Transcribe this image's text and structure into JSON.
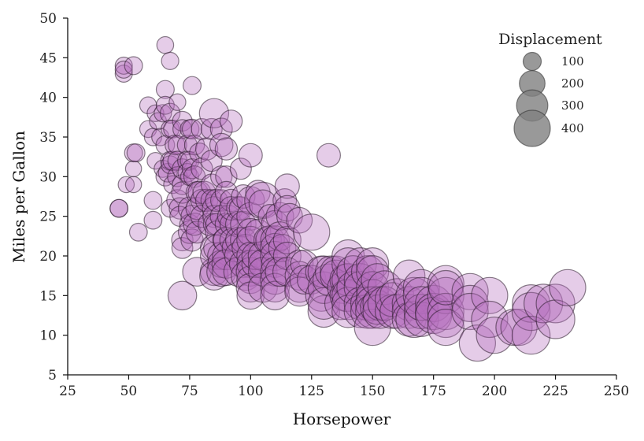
{
  "chart_data": {
    "type": "scatter",
    "title": "",
    "xlabel": "Horsepower",
    "ylabel": "Miles per Gallon",
    "xlim": [
      25,
      250
    ],
    "ylim": [
      5,
      50
    ],
    "xticks": [
      25,
      50,
      75,
      100,
      125,
      150,
      175,
      200,
      225,
      250
    ],
    "yticks": [
      5,
      10,
      15,
      20,
      25,
      30,
      35,
      40,
      45,
      50
    ],
    "grid": false,
    "marker_color": "#b56cbe",
    "marker_alpha": 0.35,
    "edge_color": "#2a1a2a",
    "size_encoding": "Displacement",
    "legend": {
      "title": "Displacement",
      "placement": "top-right",
      "color": "#808080",
      "entries": [
        {
          "label": "100",
          "value": 100
        },
        {
          "label": "200",
          "value": 200
        },
        {
          "label": "300",
          "value": 300
        },
        {
          "label": "400",
          "value": 400
        }
      ]
    },
    "points": [
      {
        "x": 46,
        "y": 26,
        "d": 97
      },
      {
        "x": 46,
        "y": 26,
        "d": 97
      },
      {
        "x": 48,
        "y": 43,
        "d": 90
      },
      {
        "x": 48,
        "y": 44,
        "d": 90
      },
      {
        "x": 48,
        "y": 43.5,
        "d": 90
      },
      {
        "x": 49,
        "y": 29,
        "d": 79
      },
      {
        "x": 52,
        "y": 44,
        "d": 98
      },
      {
        "x": 52,
        "y": 31,
        "d": 79
      },
      {
        "x": 52,
        "y": 29,
        "d": 79
      },
      {
        "x": 52,
        "y": 33,
        "d": 98
      },
      {
        "x": 53,
        "y": 33,
        "d": 98
      },
      {
        "x": 54,
        "y": 23,
        "d": 97
      },
      {
        "x": 58,
        "y": 39,
        "d": 86
      },
      {
        "x": 58,
        "y": 36,
        "d": 86
      },
      {
        "x": 60,
        "y": 35,
        "d": 91
      },
      {
        "x": 60,
        "y": 27,
        "d": 97
      },
      {
        "x": 60,
        "y": 24.5,
        "d": 97
      },
      {
        "x": 61,
        "y": 32,
        "d": 85
      },
      {
        "x": 61,
        "y": 38,
        "d": 85
      },
      {
        "x": 62,
        "y": 37,
        "d": 89
      },
      {
        "x": 63,
        "y": 35,
        "d": 91
      },
      {
        "x": 64,
        "y": 38,
        "d": 91
      },
      {
        "x": 64,
        "y": 31,
        "d": 91
      },
      {
        "x": 65,
        "y": 46.6,
        "d": 86
      },
      {
        "x": 65,
        "y": 34,
        "d": 105
      },
      {
        "x": 65,
        "y": 30,
        "d": 105
      },
      {
        "x": 65,
        "y": 41,
        "d": 98
      },
      {
        "x": 65,
        "y": 39,
        "d": 98
      },
      {
        "x": 66,
        "y": 30.5,
        "d": 105
      },
      {
        "x": 67,
        "y": 32,
        "d": 108
      },
      {
        "x": 67,
        "y": 44.6,
        "d": 91
      },
      {
        "x": 67,
        "y": 38,
        "d": 120
      },
      {
        "x": 67,
        "y": 36,
        "d": 98
      },
      {
        "x": 67,
        "y": 31.5,
        "d": 98
      },
      {
        "x": 67,
        "y": 26,
        "d": 97
      },
      {
        "x": 68,
        "y": 36,
        "d": 98
      },
      {
        "x": 68,
        "y": 32,
        "d": 112
      },
      {
        "x": 68,
        "y": 29,
        "d": 97
      },
      {
        "x": 69,
        "y": 34,
        "d": 121
      },
      {
        "x": 70,
        "y": 39.4,
        "d": 85
      },
      {
        "x": 70,
        "y": 34,
        "d": 105
      },
      {
        "x": 70,
        "y": 32,
        "d": 112
      },
      {
        "x": 70,
        "y": 30,
        "d": 120
      },
      {
        "x": 70,
        "y": 27,
        "d": 140
      },
      {
        "x": 71,
        "y": 26,
        "d": 140
      },
      {
        "x": 71,
        "y": 25,
        "d": 122
      },
      {
        "x": 72,
        "y": 37,
        "d": 119
      },
      {
        "x": 72,
        "y": 36,
        "d": 108
      },
      {
        "x": 72,
        "y": 31,
        "d": 120
      },
      {
        "x": 72,
        "y": 29,
        "d": 122
      },
      {
        "x": 72,
        "y": 28,
        "d": 140
      },
      {
        "x": 72,
        "y": 22,
        "d": 140
      },
      {
        "x": 72,
        "y": 21,
        "d": 134
      },
      {
        "x": 72,
        "y": 15,
        "d": 250
      },
      {
        "x": 74,
        "y": 34,
        "d": 119
      },
      {
        "x": 74,
        "y": 32,
        "d": 113
      },
      {
        "x": 74,
        "y": 30.5,
        "d": 105
      },
      {
        "x": 75,
        "y": 36,
        "d": 107
      },
      {
        "x": 75,
        "y": 32,
        "d": 105
      },
      {
        "x": 75,
        "y": 30,
        "d": 98
      },
      {
        "x": 75,
        "y": 26,
        "d": 156
      },
      {
        "x": 75,
        "y": 24,
        "d": 121
      },
      {
        "x": 75,
        "y": 23,
        "d": 156
      },
      {
        "x": 76,
        "y": 41.5,
        "d": 98
      },
      {
        "x": 76,
        "y": 36,
        "d": 119
      },
      {
        "x": 76,
        "y": 31,
        "d": 121
      },
      {
        "x": 76,
        "y": 25,
        "d": 151
      },
      {
        "x": 76,
        "y": 22,
        "d": 151
      },
      {
        "x": 77,
        "y": 34,
        "d": 121
      },
      {
        "x": 77,
        "y": 30,
        "d": 140
      },
      {
        "x": 77,
        "y": 24,
        "d": 151
      },
      {
        "x": 78,
        "y": 28,
        "d": 146
      },
      {
        "x": 78,
        "y": 26,
        "d": 151
      },
      {
        "x": 78,
        "y": 23,
        "d": 146
      },
      {
        "x": 78,
        "y": 18,
        "d": 250
      },
      {
        "x": 79,
        "y": 33,
        "d": 119
      },
      {
        "x": 79,
        "y": 28,
        "d": 156
      },
      {
        "x": 80,
        "y": 36,
        "d": 134
      },
      {
        "x": 80,
        "y": 31,
        "d": 140
      },
      {
        "x": 80,
        "y": 27,
        "d": 151
      },
      {
        "x": 80,
        "y": 25,
        "d": 151
      },
      {
        "x": 81,
        "y": 28,
        "d": 156
      },
      {
        "x": 82,
        "y": 27,
        "d": 151
      },
      {
        "x": 82,
        "y": 33.5,
        "d": 151
      },
      {
        "x": 83,
        "y": 24,
        "d": 151
      },
      {
        "x": 84,
        "y": 29,
        "d": 135
      },
      {
        "x": 84,
        "y": 32,
        "d": 135
      },
      {
        "x": 84,
        "y": 27,
        "d": 140
      },
      {
        "x": 84,
        "y": 36,
        "d": 135
      },
      {
        "x": 85,
        "y": 38,
        "d": 262
      },
      {
        "x": 85,
        "y": 26,
        "d": 168
      },
      {
        "x": 85,
        "y": 25,
        "d": 151
      },
      {
        "x": 85,
        "y": 24,
        "d": 140
      },
      {
        "x": 85,
        "y": 21,
        "d": 225
      },
      {
        "x": 85,
        "y": 18,
        "d": 232
      },
      {
        "x": 85,
        "y": 20,
        "d": 225
      },
      {
        "x": 85,
        "y": 17.5,
        "d": 250
      },
      {
        "x": 86,
        "y": 27,
        "d": 151
      },
      {
        "x": 86,
        "y": 24,
        "d": 140
      },
      {
        "x": 86,
        "y": 23,
        "d": 151
      },
      {
        "x": 86,
        "y": 21,
        "d": 200
      },
      {
        "x": 88,
        "y": 36,
        "d": 146
      },
      {
        "x": 88,
        "y": 34,
        "d": 163
      },
      {
        "x": 88,
        "y": 30,
        "d": 140
      },
      {
        "x": 88,
        "y": 27,
        "d": 140
      },
      {
        "x": 88,
        "y": 25,
        "d": 151
      },
      {
        "x": 88,
        "y": 20,
        "d": 232
      },
      {
        "x": 88,
        "y": 19,
        "d": 225
      },
      {
        "x": 88,
        "y": 18,
        "d": 258
      },
      {
        "x": 89,
        "y": 22,
        "d": 151
      },
      {
        "x": 90,
        "y": 33.5,
        "d": 151
      },
      {
        "x": 90,
        "y": 30,
        "d": 140
      },
      {
        "x": 90,
        "y": 28,
        "d": 151
      },
      {
        "x": 90,
        "y": 24,
        "d": 151
      },
      {
        "x": 90,
        "y": 22,
        "d": 198
      },
      {
        "x": 90,
        "y": 20,
        "d": 232
      },
      {
        "x": 90,
        "y": 19,
        "d": 250
      },
      {
        "x": 90,
        "y": 18,
        "d": 232
      },
      {
        "x": 91,
        "y": 25,
        "d": 151
      },
      {
        "x": 92,
        "y": 37,
        "d": 151
      },
      {
        "x": 92,
        "y": 27,
        "d": 151
      },
      {
        "x": 92,
        "y": 24,
        "d": 151
      },
      {
        "x": 92,
        "y": 22,
        "d": 156
      },
      {
        "x": 92,
        "y": 26,
        "d": 168
      },
      {
        "x": 94,
        "y": 21,
        "d": 232
      },
      {
        "x": 95,
        "y": 26,
        "d": 171
      },
      {
        "x": 95,
        "y": 24,
        "d": 200
      },
      {
        "x": 95,
        "y": 22,
        "d": 200
      },
      {
        "x": 95,
        "y": 20,
        "d": 232
      },
      {
        "x": 95,
        "y": 18,
        "d": 258
      },
      {
        "x": 96,
        "y": 31,
        "d": 135
      },
      {
        "x": 96,
        "y": 26,
        "d": 163
      },
      {
        "x": 97,
        "y": 27.5,
        "d": 168
      },
      {
        "x": 97,
        "y": 24,
        "d": 198
      },
      {
        "x": 97,
        "y": 22,
        "d": 200
      },
      {
        "x": 97,
        "y": 19,
        "d": 232
      },
      {
        "x": 98,
        "y": 21,
        "d": 225
      },
      {
        "x": 98,
        "y": 17.5,
        "d": 258
      },
      {
        "x": 100,
        "y": 32.7,
        "d": 168
      },
      {
        "x": 100,
        "y": 27,
        "d": 232
      },
      {
        "x": 100,
        "y": 25,
        "d": 232
      },
      {
        "x": 100,
        "y": 23,
        "d": 225
      },
      {
        "x": 100,
        "y": 22,
        "d": 232
      },
      {
        "x": 100,
        "y": 20,
        "d": 232
      },
      {
        "x": 100,
        "y": 19,
        "d": 225
      },
      {
        "x": 100,
        "y": 18,
        "d": 250
      },
      {
        "x": 100,
        "y": 17,
        "d": 232
      },
      {
        "x": 100,
        "y": 16,
        "d": 250
      },
      {
        "x": 100,
        "y": 15,
        "d": 225
      },
      {
        "x": 102,
        "y": 19,
        "d": 225
      },
      {
        "x": 102,
        "y": 20,
        "d": 225
      },
      {
        "x": 103,
        "y": 28,
        "d": 181
      },
      {
        "x": 103,
        "y": 23,
        "d": 200
      },
      {
        "x": 105,
        "y": 27,
        "d": 400
      },
      {
        "x": 105,
        "y": 26.6,
        "d": 232
      },
      {
        "x": 105,
        "y": 20,
        "d": 258
      },
      {
        "x": 105,
        "y": 19,
        "d": 250
      },
      {
        "x": 105,
        "y": 18,
        "d": 250
      },
      {
        "x": 105,
        "y": 16,
        "d": 258
      },
      {
        "x": 107,
        "y": 22,
        "d": 232
      },
      {
        "x": 108,
        "y": 25,
        "d": 173
      },
      {
        "x": 108,
        "y": 22,
        "d": 250
      },
      {
        "x": 110,
        "y": 24,
        "d": 225
      },
      {
        "x": 110,
        "y": 22,
        "d": 250
      },
      {
        "x": 110,
        "y": 21,
        "d": 258
      },
      {
        "x": 110,
        "y": 20,
        "d": 258
      },
      {
        "x": 110,
        "y": 19,
        "d": 225
      },
      {
        "x": 110,
        "y": 18,
        "d": 250
      },
      {
        "x": 110,
        "y": 17,
        "d": 258
      },
      {
        "x": 110,
        "y": 16,
        "d": 250
      },
      {
        "x": 110,
        "y": 15,
        "d": 250
      },
      {
        "x": 112,
        "y": 25,
        "d": 232
      },
      {
        "x": 112,
        "y": 22.5,
        "d": 250
      },
      {
        "x": 112,
        "y": 18,
        "d": 258
      },
      {
        "x": 113,
        "y": 21,
        "d": 225
      },
      {
        "x": 114,
        "y": 27,
        "d": 168
      },
      {
        "x": 115,
        "y": 28.8,
        "d": 181
      },
      {
        "x": 115,
        "y": 26,
        "d": 200
      },
      {
        "x": 115,
        "y": 22,
        "d": 231
      },
      {
        "x": 115,
        "y": 20,
        "d": 231
      },
      {
        "x": 115,
        "y": 18,
        "d": 250
      },
      {
        "x": 116,
        "y": 25,
        "d": 200
      },
      {
        "x": 120,
        "y": 24.5,
        "d": 200
      },
      {
        "x": 120,
        "y": 19,
        "d": 231
      },
      {
        "x": 120,
        "y": 17.5,
        "d": 250
      },
      {
        "x": 120,
        "y": 16,
        "d": 258
      },
      {
        "x": 120,
        "y": 15.5,
        "d": 258
      },
      {
        "x": 122,
        "y": 19,
        "d": 225
      },
      {
        "x": 122,
        "y": 17,
        "d": 250
      },
      {
        "x": 125,
        "y": 23,
        "d": 400
      },
      {
        "x": 125,
        "y": 17,
        "d": 250
      },
      {
        "x": 129,
        "y": 18,
        "d": 302
      },
      {
        "x": 129,
        "y": 15,
        "d": 302
      },
      {
        "x": 130,
        "y": 13,
        "d": 307
      },
      {
        "x": 130,
        "y": 18,
        "d": 305
      },
      {
        "x": 130,
        "y": 16,
        "d": 305
      },
      {
        "x": 130,
        "y": 14,
        "d": 305
      },
      {
        "x": 132,
        "y": 32.7,
        "d": 168
      },
      {
        "x": 132,
        "y": 17,
        "d": 302
      },
      {
        "x": 133,
        "y": 18,
        "d": 305
      },
      {
        "x": 135,
        "y": 18,
        "d": 302
      },
      {
        "x": 135,
        "y": 17.5,
        "d": 302
      },
      {
        "x": 137,
        "y": 14,
        "d": 318
      },
      {
        "x": 138,
        "y": 16,
        "d": 302
      },
      {
        "x": 139,
        "y": 17,
        "d": 302
      },
      {
        "x": 139,
        "y": 15,
        "d": 302
      },
      {
        "x": 140,
        "y": 20,
        "d": 318
      },
      {
        "x": 140,
        "y": 19,
        "d": 318
      },
      {
        "x": 140,
        "y": 17,
        "d": 318
      },
      {
        "x": 140,
        "y": 15,
        "d": 318
      },
      {
        "x": 140,
        "y": 14,
        "d": 318
      },
      {
        "x": 140,
        "y": 13,
        "d": 318
      },
      {
        "x": 142,
        "y": 18,
        "d": 318
      },
      {
        "x": 142,
        "y": 16,
        "d": 318
      },
      {
        "x": 145,
        "y": 19,
        "d": 318
      },
      {
        "x": 145,
        "y": 17,
        "d": 318
      },
      {
        "x": 145,
        "y": 16,
        "d": 318
      },
      {
        "x": 145,
        "y": 14,
        "d": 318
      },
      {
        "x": 145,
        "y": 13,
        "d": 318
      },
      {
        "x": 148,
        "y": 14,
        "d": 350
      },
      {
        "x": 148,
        "y": 13,
        "d": 350
      },
      {
        "x": 148,
        "y": 18,
        "d": 318
      },
      {
        "x": 150,
        "y": 19,
        "d": 318
      },
      {
        "x": 150,
        "y": 18,
        "d": 318
      },
      {
        "x": 150,
        "y": 16,
        "d": 318
      },
      {
        "x": 150,
        "y": 15,
        "d": 318
      },
      {
        "x": 150,
        "y": 14,
        "d": 350
      },
      {
        "x": 150,
        "y": 13,
        "d": 351
      },
      {
        "x": 150,
        "y": 11,
        "d": 400
      },
      {
        "x": 152,
        "y": 17,
        "d": 318
      },
      {
        "x": 152,
        "y": 13.5,
        "d": 350
      },
      {
        "x": 153,
        "y": 14,
        "d": 351
      },
      {
        "x": 153,
        "y": 13,
        "d": 350
      },
      {
        "x": 155,
        "y": 16,
        "d": 351
      },
      {
        "x": 155,
        "y": 14,
        "d": 350
      },
      {
        "x": 158,
        "y": 13,
        "d": 351
      },
      {
        "x": 158,
        "y": 14.5,
        "d": 351
      },
      {
        "x": 160,
        "y": 15,
        "d": 350
      },
      {
        "x": 160,
        "y": 13,
        "d": 351
      },
      {
        "x": 165,
        "y": 17.5,
        "d": 304
      },
      {
        "x": 165,
        "y": 14,
        "d": 350
      },
      {
        "x": 165,
        "y": 13,
        "d": 350
      },
      {
        "x": 165,
        "y": 12,
        "d": 351
      },
      {
        "x": 167,
        "y": 15,
        "d": 400
      },
      {
        "x": 167,
        "y": 12,
        "d": 400
      },
      {
        "x": 170,
        "y": 16,
        "d": 400
      },
      {
        "x": 170,
        "y": 15,
        "d": 400
      },
      {
        "x": 170,
        "y": 13,
        "d": 360
      },
      {
        "x": 170,
        "y": 12,
        "d": 360
      },
      {
        "x": 170,
        "y": 14,
        "d": 350
      },
      {
        "x": 175,
        "y": 14,
        "d": 400
      },
      {
        "x": 175,
        "y": 13,
        "d": 400
      },
      {
        "x": 175,
        "y": 12.5,
        "d": 400
      },
      {
        "x": 180,
        "y": 16.5,
        "d": 400
      },
      {
        "x": 180,
        "y": 15,
        "d": 400
      },
      {
        "x": 180,
        "y": 13,
        "d": 400
      },
      {
        "x": 180,
        "y": 12,
        "d": 400
      },
      {
        "x": 180,
        "y": 11,
        "d": 400
      },
      {
        "x": 180,
        "y": 16,
        "d": 360
      },
      {
        "x": 190,
        "y": 15.5,
        "d": 400
      },
      {
        "x": 190,
        "y": 14,
        "d": 400
      },
      {
        "x": 190,
        "y": 13,
        "d": 400
      },
      {
        "x": 193,
        "y": 9,
        "d": 400
      },
      {
        "x": 198,
        "y": 15,
        "d": 400
      },
      {
        "x": 198,
        "y": 12,
        "d": 400
      },
      {
        "x": 200,
        "y": 10,
        "d": 400
      },
      {
        "x": 208,
        "y": 11,
        "d": 400
      },
      {
        "x": 210,
        "y": 11,
        "d": 400
      },
      {
        "x": 215,
        "y": 14,
        "d": 429
      },
      {
        "x": 215,
        "y": 13,
        "d": 440
      },
      {
        "x": 215,
        "y": 10,
        "d": 440
      },
      {
        "x": 220,
        "y": 14,
        "d": 454
      },
      {
        "x": 225,
        "y": 14,
        "d": 455
      },
      {
        "x": 225,
        "y": 12,
        "d": 455
      },
      {
        "x": 230,
        "y": 16,
        "d": 400
      }
    ]
  }
}
